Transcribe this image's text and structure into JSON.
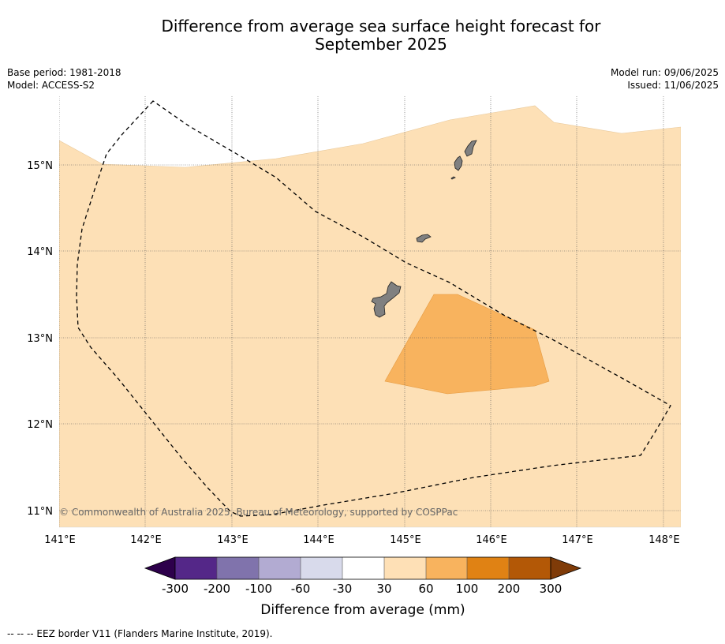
{
  "title_line1": "Difference from average sea surface height forecast for",
  "title_line2": "September 2025",
  "base_period": "Base period: 1981-2018",
  "model": "Model: ACCESS-S2",
  "model_run": "Model run: 09/06/2025",
  "issued": "Issued: 11/06/2025",
  "copyright": "© Commonwealth of Australia 2025, Bureau of Meteorology, supported by COSPPac",
  "lat_labels": [
    "15°N",
    "14°N",
    "13°N",
    "12°N",
    "11°N"
  ],
  "lon_labels": [
    "141°E",
    "142°E",
    "143°E",
    "144°E",
    "145°E",
    "146°E",
    "147°E",
    "148°E"
  ],
  "colorbar": {
    "title": "Difference from average (mm)",
    "ticks": [
      "-300",
      "-200",
      "-100",
      "-60",
      "-30",
      "30",
      "60",
      "100",
      "200",
      "300"
    ],
    "colors": [
      "#2d004b",
      "#542788",
      "#8073ac",
      "#b2abd2",
      "#d8daeb",
      "#ffffff",
      "#fee0b6",
      "#f8b35e",
      "#e08214",
      "#b35806",
      "#7f3b08"
    ]
  },
  "footnote": "--  --  -- EEZ border V11 (Flanders Marine Institute, 2019).",
  "colors": {
    "anomaly_30_60": "#fde0b6",
    "anomaly_60_100": "#f8b35e",
    "land": "#808080",
    "eez_border": "#000000"
  },
  "icons": [
    "grid-lines",
    "eez-border-dashed",
    "land-islands"
  ]
}
